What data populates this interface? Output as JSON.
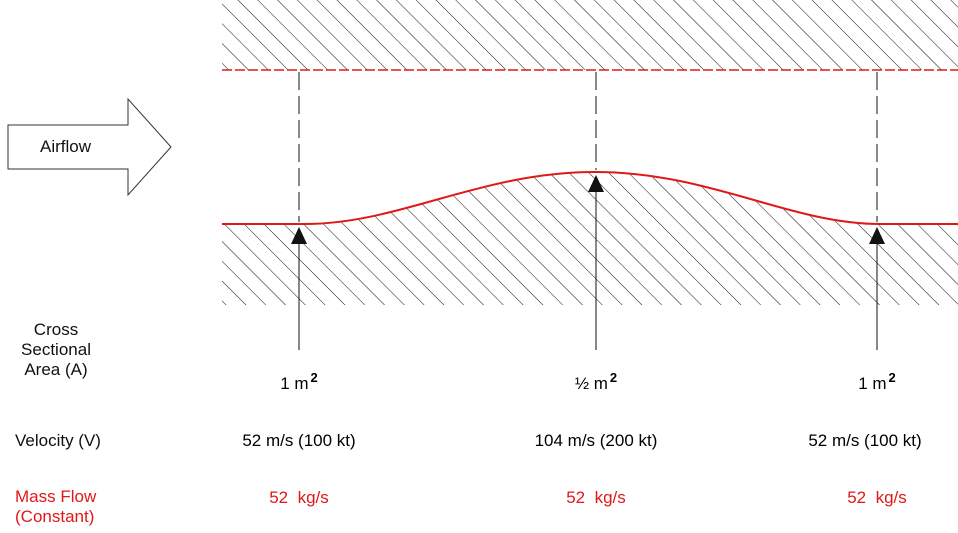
{
  "airflow_label": "Airflow",
  "rows": {
    "area": {
      "label_lines": [
        "Cross",
        "Sectional",
        "Area (A)"
      ]
    },
    "velocity": {
      "label": "Velocity (V)"
    },
    "mass_flow": {
      "label_lines": [
        "Mass Flow",
        "(Constant)"
      ]
    }
  },
  "stations": [
    {
      "area_value": "1 m",
      "area_exp": "2",
      "velocity": "52 m/s (100 kt)",
      "mass_flow": "52  kg/s"
    },
    {
      "area_value": "½ m",
      "area_exp": "2",
      "velocity": "104 m/s (200 kt)",
      "mass_flow": "52  kg/s"
    },
    {
      "area_value": "1 m",
      "area_exp": "2",
      "velocity": "52 m/s (100 kt)",
      "mass_flow": "52  kg/s"
    }
  ],
  "colors": {
    "wall_line": "#e01818",
    "hatch": "#111111",
    "mass_flow_text": "#e01818"
  }
}
